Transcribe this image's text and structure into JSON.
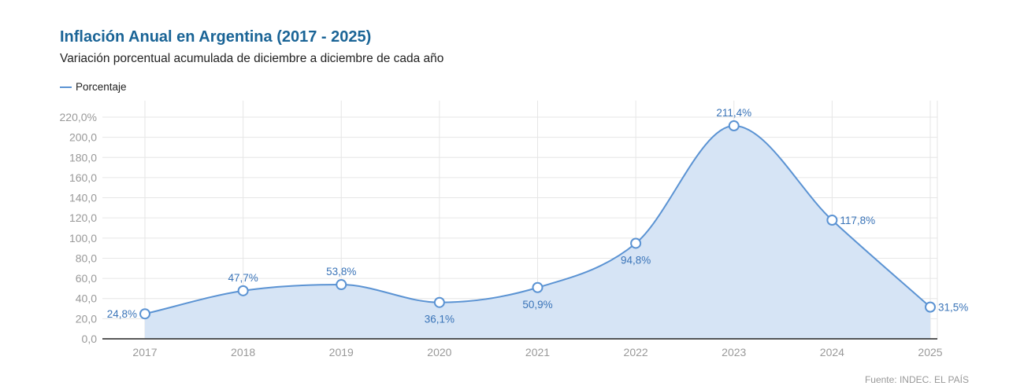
{
  "title": "Inflación Anual en Argentina (2017 - 2025)",
  "subtitle": "Variación porcentual acumulada de diciembre a diciembre de cada año",
  "source": "Fuente: INDEC. EL PAÍS",
  "colors": {
    "line": "#5b93d3",
    "fill": "#d6e4f5",
    "title": "#1a6496"
  },
  "chart_data": {
    "type": "area",
    "title": "Inflación Anual en Argentina (2017 - 2025)",
    "subtitle": "Variación porcentual acumulada de diciembre a diciembre de cada año",
    "legend": {
      "position": "top-left",
      "entries": [
        "Porcentaje"
      ]
    },
    "categories": [
      "2017",
      "2018",
      "2019",
      "2020",
      "2021",
      "2022",
      "2023",
      "2024",
      "2025"
    ],
    "series": [
      {
        "name": "Porcentaje",
        "values": [
          24.8,
          47.7,
          53.8,
          36.1,
          50.9,
          94.8,
          211.4,
          117.8,
          31.5
        ]
      }
    ],
    "data_labels": [
      "24,8%",
      "47,7%",
      "53,8%",
      "36,1%",
      "50,9%",
      "94,8%",
      "211,4%",
      "117,8%",
      "31,5%"
    ],
    "yticks": [
      "0,0",
      "20,0",
      "40,0",
      "60,0",
      "80,0",
      "100,0",
      "120,0",
      "140,0",
      "160,0",
      "180,0",
      "200,0",
      "220,0%"
    ],
    "ylim": [
      0,
      220
    ],
    "grid": true,
    "smooth": true
  }
}
